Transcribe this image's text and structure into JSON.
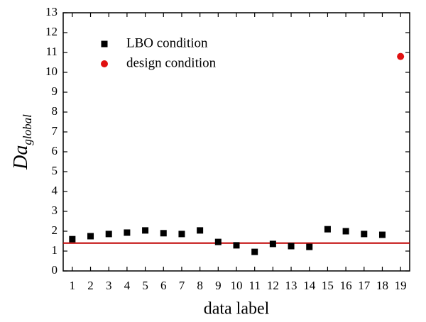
{
  "chart_data": {
    "type": "scatter",
    "xlabel": "data label",
    "ylabel": "Da",
    "ylabel_sub": "global",
    "xlim": [
      0.5,
      19.5
    ],
    "xticks": [
      1,
      2,
      3,
      4,
      5,
      6,
      7,
      8,
      9,
      10,
      11,
      12,
      13,
      14,
      15,
      16,
      17,
      18,
      19
    ],
    "ylim": [
      0,
      13
    ],
    "yticks": [
      0,
      1,
      2,
      3,
      4,
      5,
      6,
      7,
      8,
      9,
      10,
      11,
      12,
      13
    ],
    "legend": "upper left",
    "hline": {
      "value": 1.4,
      "color": "#c00000"
    },
    "series": [
      {
        "name": "LBO condition",
        "color": "#000000",
        "marker": "square",
        "x": [
          1,
          2,
          3,
          4,
          5,
          6,
          7,
          8,
          9,
          10,
          11,
          12,
          13,
          14,
          15,
          16,
          17,
          18
        ],
        "values": [
          1.6,
          1.75,
          1.86,
          1.93,
          2.04,
          1.9,
          1.86,
          2.04,
          1.46,
          1.29,
          0.96,
          1.36,
          1.25,
          1.21,
          2.1,
          2.0,
          1.86,
          1.82
        ]
      },
      {
        "name": "design condition",
        "color": "#e01010",
        "marker": "circle",
        "x": [
          19
        ],
        "values": [
          10.8
        ]
      }
    ]
  }
}
